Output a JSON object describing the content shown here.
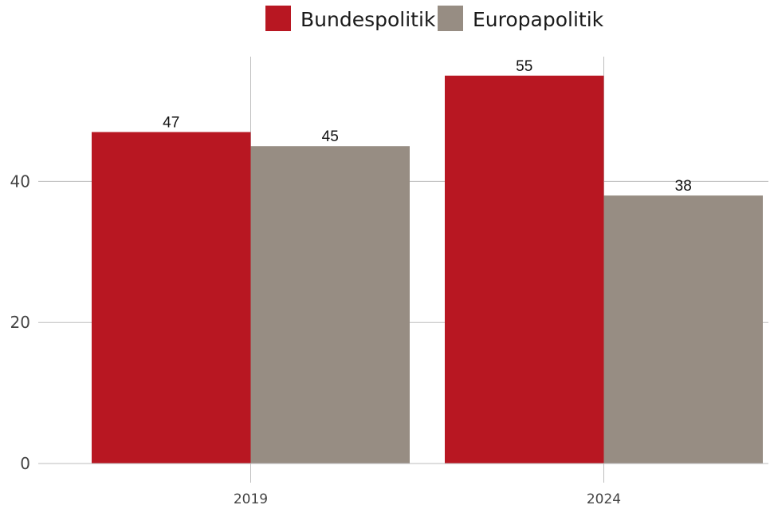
{
  "colors": {
    "bundespolitik": "#b81722",
    "europapolitik": "#978d83",
    "grid": "#bdbdbd"
  },
  "chart_data": {
    "type": "bar",
    "categories": [
      "2019",
      "2024"
    ],
    "series": [
      {
        "name": "Bundespolitik",
        "values": [
          47,
          55
        ]
      },
      {
        "name": "Europapolitik",
        "values": [
          45,
          38
        ]
      }
    ],
    "title": "",
    "xlabel": "",
    "ylabel": "",
    "ylim": [
      0,
      55
    ],
    "yticks": [
      0,
      20,
      40
    ],
    "grid": true,
    "legend": "top-center",
    "data_labels": true
  }
}
